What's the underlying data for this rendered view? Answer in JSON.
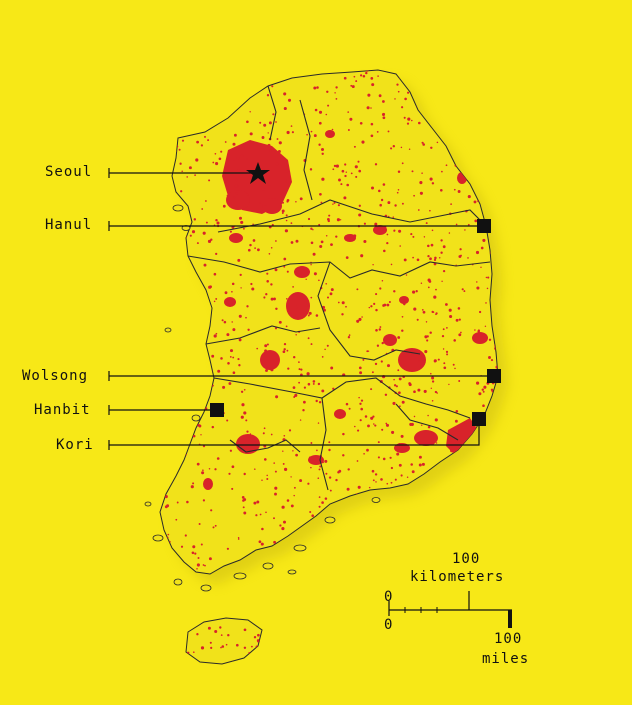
{
  "map": {
    "background_color": "#f7e817",
    "land_color": "#f1e21a",
    "urban_color": "#d8232a",
    "border_color": "#2a2a2a",
    "capital_marker": "star-icon",
    "plant_marker": "square-icon"
  },
  "labels": {
    "seoul": "Seoul",
    "hanul": "Hanul",
    "wolsong": "Wolsong",
    "hanbit": "Hanbit",
    "kori": "Kori"
  },
  "scale": {
    "km_value": "100",
    "km_unit": "kilometers",
    "zero_top": "0",
    "zero_bottom": "0",
    "mi_value": "100",
    "mi_unit": "miles"
  }
}
